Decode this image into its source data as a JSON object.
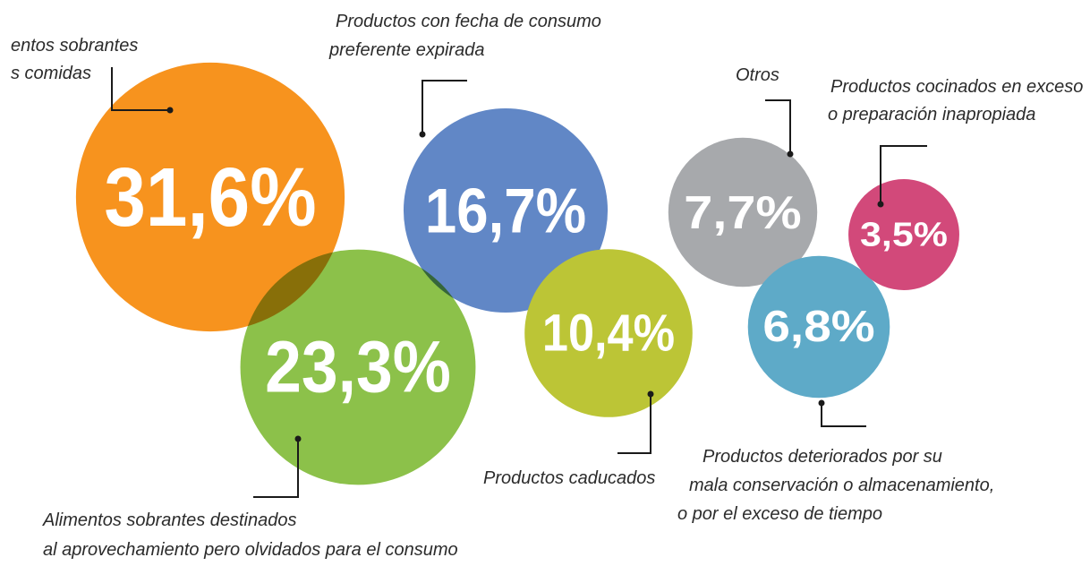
{
  "chart_data": {
    "type": "bubble",
    "categories": [
      [
        "entos sobrantes",
        "s comidas"
      ],
      [
        "Productos con fecha de consumo",
        "preferente expirada"
      ],
      [
        "Alimentos sobrantes destinados",
        "al aprovechamiento pero olvidados para el consumo"
      ],
      [
        "Productos caducados"
      ],
      [
        "Otros"
      ],
      [
        "Productos deteriorados por su",
        "mala conservación o almacenamiento,",
        "o por el exceso de tiempo"
      ],
      [
        "Productos cocinados en exceso",
        "o preparación inapropiada"
      ]
    ],
    "values": [
      31.6,
      16.7,
      23.3,
      10.4,
      7.7,
      6.8,
      3.5
    ],
    "value_labels": [
      "31,6%",
      "16,7%",
      "23,3%",
      "10,4%",
      "7,7%",
      "6,8%",
      "3,5%"
    ],
    "colors": [
      "#f7931e",
      "#6187c6",
      "#8cc14a",
      "#bcc536",
      "#a7a9ac",
      "#5eaac8",
      "#d2497a"
    ]
  }
}
